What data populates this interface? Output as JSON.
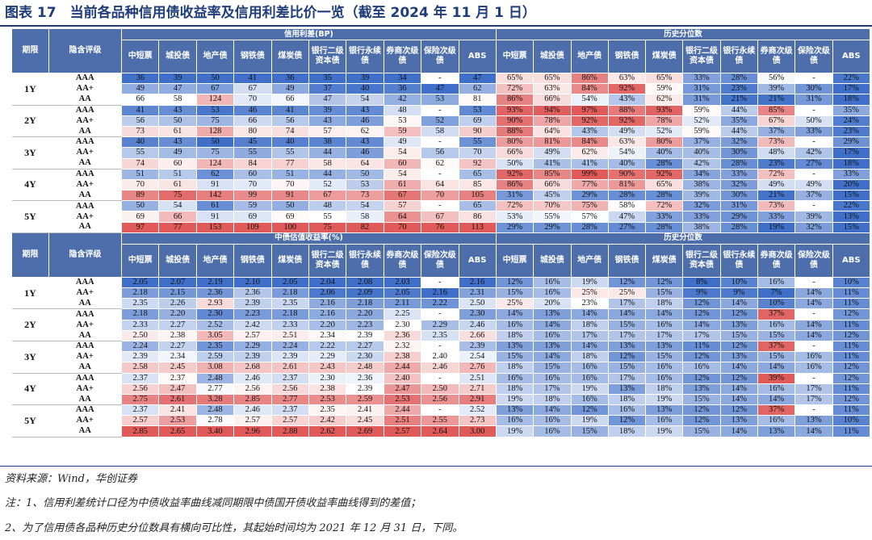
{
  "title": "图表 17　当前各品种信用债收益率及信用利差比价一览（截至 2024 年 11 月 1 日）",
  "labels": {
    "period": "期限",
    "grade": "隐含评级"
  },
  "periods": [
    "1Y",
    "2Y",
    "3Y",
    "4Y",
    "5Y"
  ],
  "grades": [
    "AAA",
    "AA+",
    "AA"
  ],
  "sections": [
    {
      "group_left": "信用利差(BP)",
      "group_right": "历史分位数",
      "cols_left": [
        "中短票",
        "城投债",
        "地产债",
        "钢铁债",
        "煤炭债",
        "银行二级资本债",
        "银行永续债",
        "券商次级债",
        "保险次级债",
        "ABS"
      ],
      "cols_right": [
        "中短票",
        "城投债",
        "地产债",
        "钢铁债",
        "煤炭债",
        "银行二级资本债",
        "银行永续债",
        "券商次级债",
        "保险次级债",
        "ABS"
      ],
      "rows": [
        {
          "l": [
            "36",
            "39",
            "50",
            "41",
            "36",
            "35",
            "39",
            "34",
            "-",
            "47"
          ],
          "r": [
            "65%",
            "65%",
            "86%",
            "63%",
            "65%",
            "33%",
            "28%",
            "56%",
            "-",
            "22%"
          ]
        },
        {
          "l": [
            "49",
            "47",
            "67",
            "67",
            "49",
            "37",
            "40",
            "36",
            "47",
            "62"
          ],
          "r": [
            "72%",
            "63%",
            "84%",
            "92%",
            "59%",
            "31%",
            "23%",
            "39%",
            "30%",
            "17%"
          ]
        },
        {
          "l": [
            "66",
            "58",
            "124",
            "70",
            "66",
            "47",
            "54",
            "42",
            "53",
            "81"
          ],
          "r": [
            "86%",
            "66%",
            "54%",
            "43%",
            "62%",
            "31%",
            "21%",
            "21%",
            "31%",
            "18%"
          ]
        },
        {
          "l": [
            "41",
            "43",
            "53",
            "46",
            "41",
            "39",
            "43",
            "48",
            "-",
            "53"
          ],
          "r": [
            "93%",
            "94%",
            "97%",
            "88%",
            "93%",
            "59%",
            "44%",
            "85%",
            "-",
            "35%"
          ]
        },
        {
          "l": [
            "56",
            "50",
            "75",
            "66",
            "56",
            "43",
            "46",
            "53",
            "52",
            "69"
          ],
          "r": [
            "90%",
            "78%",
            "92%",
            "92%",
            "78%",
            "52%",
            "35%",
            "67%",
            "50%",
            "24%"
          ]
        },
        {
          "l": [
            "73",
            "61",
            "128",
            "80",
            "74",
            "57",
            "62",
            "59",
            "58",
            "90"
          ],
          "r": [
            "88%",
            "64%",
            "43%",
            "49%",
            "52%",
            "59%",
            "44%",
            "37%",
            "33%",
            "23%"
          ]
        },
        {
          "l": [
            "40",
            "43",
            "50",
            "45",
            "40",
            "38",
            "43",
            "49",
            "-",
            "55"
          ],
          "r": [
            "80%",
            "81%",
            "84%",
            "63%",
            "80%",
            "37%",
            "32%",
            "73%",
            "-",
            "29%"
          ]
        },
        {
          "l": [
            "55",
            "49",
            "75",
            "55",
            "55",
            "44",
            "46",
            "54",
            "56",
            "70"
          ],
          "r": [
            "66%",
            "49%",
            "62%",
            "54%",
            "40%",
            "40%",
            "30%",
            "48%",
            "42%",
            "17%"
          ]
        },
        {
          "l": [
            "74",
            "60",
            "124",
            "84",
            "77",
            "58",
            "64",
            "60",
            "62",
            "92"
          ],
          "r": [
            "50%",
            "41%",
            "41%",
            "40%",
            "28%",
            "42%",
            "28%",
            "23%",
            "27%",
            "18%"
          ]
        },
        {
          "l": [
            "51",
            "51",
            "62",
            "60",
            "51",
            "44",
            "50",
            "54",
            "-",
            "65"
          ],
          "r": [
            "92%",
            "85%",
            "99%",
            "90%",
            "92%",
            "34%",
            "33%",
            "72%",
            "-",
            "33%"
          ]
        },
        {
          "l": [
            "70",
            "61",
            "91",
            "70",
            "70",
            "52",
            "53",
            "61",
            "64",
            "85"
          ],
          "r": [
            "86%",
            "66%",
            "77%",
            "81%",
            "65%",
            "38%",
            "32%",
            "49%",
            "49%",
            "20%"
          ]
        },
        {
          "l": [
            "89",
            "75",
            "142",
            "99",
            "91",
            "67",
            "73",
            "67",
            "70",
            "105"
          ],
          "r": [
            "31%",
            "45%",
            "29%",
            "28%",
            "28%",
            "39%",
            "30%",
            "21%",
            "37%",
            "15%"
          ]
        },
        {
          "l": [
            "50",
            "54",
            "61",
            "59",
            "50",
            "48",
            "54",
            "57",
            "-",
            "65"
          ],
          "r": [
            "72%",
            "70%",
            "75%",
            "58%",
            "72%",
            "32%",
            "31%",
            "73%",
            "-",
            "22%"
          ]
        },
        {
          "l": [
            "69",
            "66",
            "91",
            "69",
            "69",
            "55",
            "58",
            "64",
            "67",
            "86"
          ],
          "r": [
            "53%",
            "55%",
            "57%",
            "47%",
            "33%",
            "33%",
            "29%",
            "33%",
            "39%",
            "13%"
          ]
        },
        {
          "l": [
            "97",
            "77",
            "153",
            "109",
            "100",
            "75",
            "82",
            "70",
            "76",
            "113"
          ],
          "r": [
            "29%",
            "29%",
            "28%",
            "27%",
            "28%",
            "38%",
            "28%",
            "19%",
            "32%",
            "15%"
          ]
        }
      ]
    },
    {
      "group_left": "中债估值收益率(%)",
      "group_right": "历史分位数",
      "cols_left": [
        "中短票",
        "城投债",
        "地产债",
        "钢铁债",
        "煤炭债",
        "银行二级资本债",
        "银行永续债",
        "券商次级债",
        "保险次级债",
        "ABS"
      ],
      "cols_right": [
        "中短票",
        "城投债",
        "地产债",
        "钢铁债",
        "煤炭债",
        "银行二级资本债",
        "银行永续债",
        "券商次级债",
        "保险次级债",
        "ABS"
      ],
      "rows": [
        {
          "l": [
            "2.05",
            "2.07",
            "2.19",
            "2.10",
            "2.05",
            "2.04",
            "2.08",
            "2.03",
            "-",
            "2.16"
          ],
          "r": [
            "12%",
            "16%",
            "19%",
            "12%",
            "12%",
            "8%",
            "10%",
            "16%",
            "-",
            "10%"
          ]
        },
        {
          "l": [
            "2.18",
            "2.15",
            "2.36",
            "2.36",
            "2.18",
            "2.06",
            "2.09",
            "2.05",
            "2.16",
            "2.31"
          ],
          "r": [
            "15%",
            "16%",
            "25%",
            "25%",
            "15%",
            "9%",
            "9%",
            "7%",
            "14%",
            "11%"
          ]
        },
        {
          "l": [
            "2.35",
            "2.26",
            "2.93",
            "2.39",
            "2.35",
            "2.16",
            "2.18",
            "2.11",
            "2.22",
            "2.50"
          ],
          "r": [
            "25%",
            "20%",
            "23%",
            "17%",
            "18%",
            "12%",
            "14%",
            "10%",
            "14%",
            "11%"
          ]
        },
        {
          "l": [
            "2.18",
            "2.20",
            "2.30",
            "2.23",
            "2.18",
            "2.16",
            "2.20",
            "2.25",
            "-",
            "2.30"
          ],
          "r": [
            "14%",
            "13%",
            "14%",
            "14%",
            "14%",
            "12%",
            "12%",
            "37%",
            "-",
            "12%"
          ]
        },
        {
          "l": [
            "2.33",
            "2.27",
            "2.52",
            "2.42",
            "2.33",
            "2.20",
            "2.23",
            "2.30",
            "2.29",
            "2.46"
          ],
          "r": [
            "16%",
            "14%",
            "18%",
            "15%",
            "16%",
            "14%",
            "13%",
            "16%",
            "14%",
            "11%"
          ]
        },
        {
          "l": [
            "2.50",
            "2.38",
            "3.05",
            "2.57",
            "2.51",
            "2.34",
            "2.39",
            "2.36",
            "2.35",
            "2.66"
          ],
          "r": [
            "18%",
            "16%",
            "17%",
            "17%",
            "17%",
            "17%",
            "15%",
            "15%",
            "14%",
            "12%"
          ]
        },
        {
          "l": [
            "2.24",
            "2.27",
            "2.35",
            "2.29",
            "2.24",
            "2.22",
            "2.27",
            "2.32",
            "-",
            "2.39"
          ],
          "r": [
            "13%",
            "13%",
            "14%",
            "13%",
            "13%",
            "11%",
            "12%",
            "37%",
            "-",
            "11%"
          ]
        },
        {
          "l": [
            "2.39",
            "2.34",
            "2.59",
            "2.39",
            "2.39",
            "2.29",
            "2.30",
            "2.38",
            "2.40",
            "2.54"
          ],
          "r": [
            "15%",
            "14%",
            "18%",
            "12%",
            "15%",
            "12%",
            "13%",
            "15%",
            "16%",
            "11%"
          ]
        },
        {
          "l": [
            "2.58",
            "2.45",
            "3.08",
            "2.68",
            "2.61",
            "2.43",
            "2.48",
            "2.44",
            "2.46",
            "2.76"
          ],
          "r": [
            "18%",
            "15%",
            "16%",
            "15%",
            "16%",
            "16%",
            "14%",
            "14%",
            "16%",
            "12%"
          ]
        },
        {
          "l": [
            "2.37",
            "2.37",
            "2.48",
            "2.46",
            "2.37",
            "2.30",
            "2.36",
            "2.40",
            "-",
            "2.51"
          ],
          "r": [
            "16%",
            "16%",
            "16%",
            "17%",
            "16%",
            "12%",
            "12%",
            "39%",
            "-",
            "12%"
          ]
        },
        {
          "l": [
            "2.56",
            "2.47",
            "2.77",
            "2.56",
            "2.56",
            "2.38",
            "2.39",
            "2.47",
            "2.50",
            "2.71"
          ],
          "r": [
            "18%",
            "17%",
            "19%",
            "13%",
            "18%",
            "13%",
            "14%",
            "16%",
            "17%",
            "11%"
          ]
        },
        {
          "l": [
            "2.75",
            "2.61",
            "3.28",
            "2.85",
            "2.77",
            "2.53",
            "2.59",
            "2.53",
            "2.56",
            "2.91"
          ],
          "r": [
            "19%",
            "18%",
            "16%",
            "18%",
            "19%",
            "15%",
            "14%",
            "14%",
            "17%",
            "12%"
          ]
        },
        {
          "l": [
            "2.37",
            "2.41",
            "2.48",
            "2.46",
            "2.37",
            "2.35",
            "2.41",
            "2.44",
            "-",
            "2.52"
          ],
          "r": [
            "13%",
            "14%",
            "12%",
            "16%",
            "13%",
            "12%",
            "12%",
            "37%",
            "-",
            "11%"
          ]
        },
        {
          "l": [
            "2.57",
            "2.53",
            "2.78",
            "2.57",
            "2.57",
            "2.42",
            "2.45",
            "2.51",
            "2.55",
            "2.73"
          ],
          "r": [
            "16%",
            "16%",
            "19%",
            "12%",
            "16%",
            "12%",
            "13%",
            "16%",
            "13%",
            "10%"
          ]
        },
        {
          "l": [
            "2.85",
            "2.65",
            "3.40",
            "2.96",
            "2.88",
            "2.62",
            "2.69",
            "2.57",
            "2.64",
            "3.00"
          ],
          "r": [
            "19%",
            "16%",
            "15%",
            "18%",
            "19%",
            "15%",
            "14%",
            "13%",
            "14%",
            "11%"
          ]
        }
      ]
    }
  ],
  "source": "资料来源：Wind，华创证券",
  "note1": "注：1、信用利差统计口径为中债收益率曲线减同期限中债国开债收益率曲线得到的差值；",
  "note2": "2、为了信用债各品种历史分位数具有横向可比性，其起始时间均为 2021 年 12 月 31 日，下同。",
  "colors": {
    "header": "#4d6eaa",
    "title": "#1e3d7a",
    "low": "#3f6fc9",
    "mid": "#ffffff",
    "high": "#e05a5a"
  }
}
